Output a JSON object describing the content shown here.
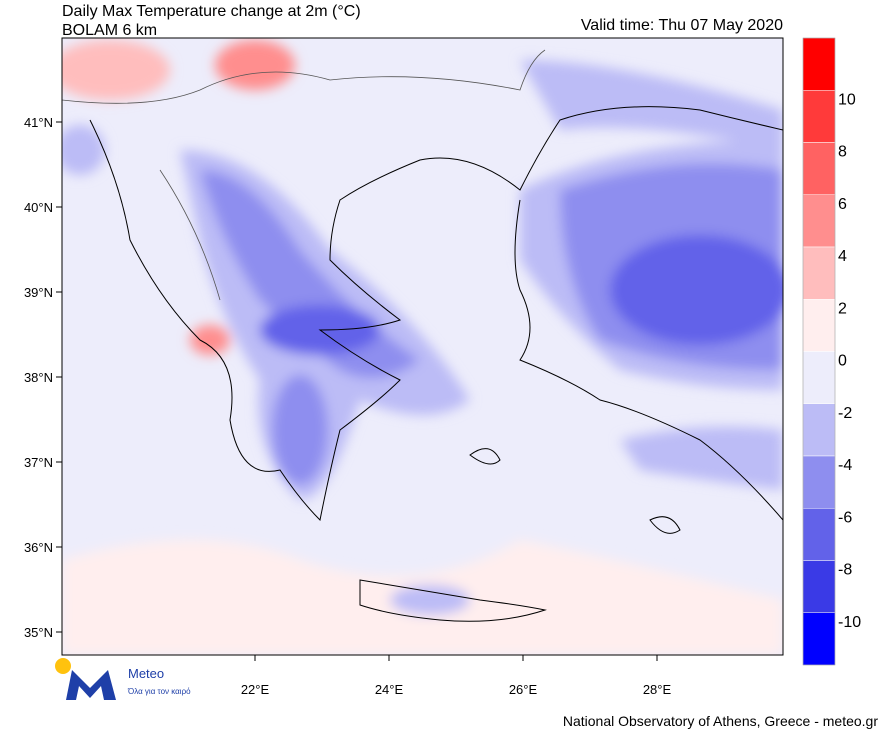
{
  "map": {
    "title": "Daily Max Temperature change at 2m (°C)",
    "subtitle": "BOLAM 6 km",
    "valid_time": "Valid time: Thu 07 May 2020",
    "lat_labels": [
      "41°N",
      "40°N",
      "39°N",
      "38°N",
      "37°N",
      "36°N",
      "35°N"
    ],
    "lon_labels": [
      "22°E",
      "24°E",
      "26°E",
      "28°E"
    ],
    "colorbar": {
      "labels": [
        10,
        8,
        6,
        4,
        2,
        0,
        -2,
        -4,
        -6,
        -8,
        -10
      ],
      "colors": [
        "#ff0000",
        "#ff3a3a",
        "#ff6262",
        "#ff8e8e",
        "#ffbdbd",
        "#ffeeee",
        "#ededfb",
        "#bcbcf6",
        "#8e8eef",
        "#6262e9",
        "#3a3ae6",
        "#0000ff"
      ]
    },
    "logo": {
      "name": "Meteo",
      "tagline": "Όλα για τον καιρό"
    },
    "footer": "National Observatory of Athens, Greece - meteo.gr"
  }
}
